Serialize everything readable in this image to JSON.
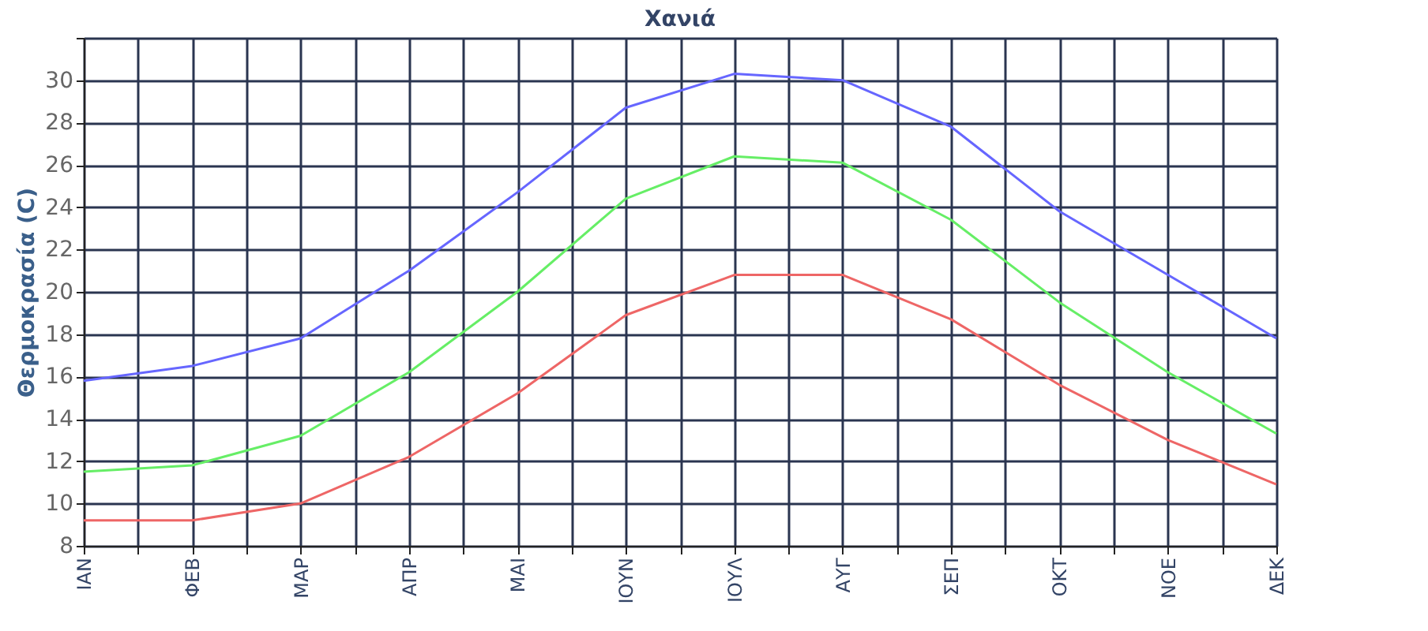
{
  "chart_data": {
    "type": "line",
    "title": "Χανιά",
    "ylabel": "Θερμοκρασία (C)",
    "categories": [
      "ΙΑΝ",
      "ΦΕΒ",
      "ΜΑΡ",
      "ΑΠΡ",
      "ΜΑΙ",
      "ΙΟΥΝ",
      "ΙΟΥΛ",
      "ΑΥΓ",
      "ΣΕΠ",
      "ΟΚΤ",
      "ΝΟΕ",
      "ΔΕΚ"
    ],
    "series": [
      {
        "color": "#6666ff",
        "values": [
          15.8,
          16.5,
          17.8,
          21.0,
          24.7,
          28.7,
          30.3,
          30.0,
          27.8,
          23.8,
          20.8,
          17.8
        ]
      },
      {
        "color": "#66ee66",
        "values": [
          11.5,
          11.8,
          13.2,
          16.2,
          20.0,
          24.4,
          26.4,
          26.1,
          23.4,
          19.5,
          16.2,
          13.3
        ]
      },
      {
        "color": "#ee6666",
        "values": [
          9.2,
          9.2,
          10.0,
          12.2,
          15.2,
          18.9,
          20.8,
          20.8,
          18.7,
          15.6,
          13.0,
          10.9
        ]
      }
    ],
    "ylim": [
      8,
      32
    ],
    "yticks": [
      8,
      10,
      12,
      14,
      16,
      18,
      20,
      22,
      24,
      26,
      28,
      30,
      {
        "value": 32,
        "label": null
      }
    ],
    "grid": true,
    "legend": false,
    "marker": "none",
    "line_style": "solid"
  }
}
